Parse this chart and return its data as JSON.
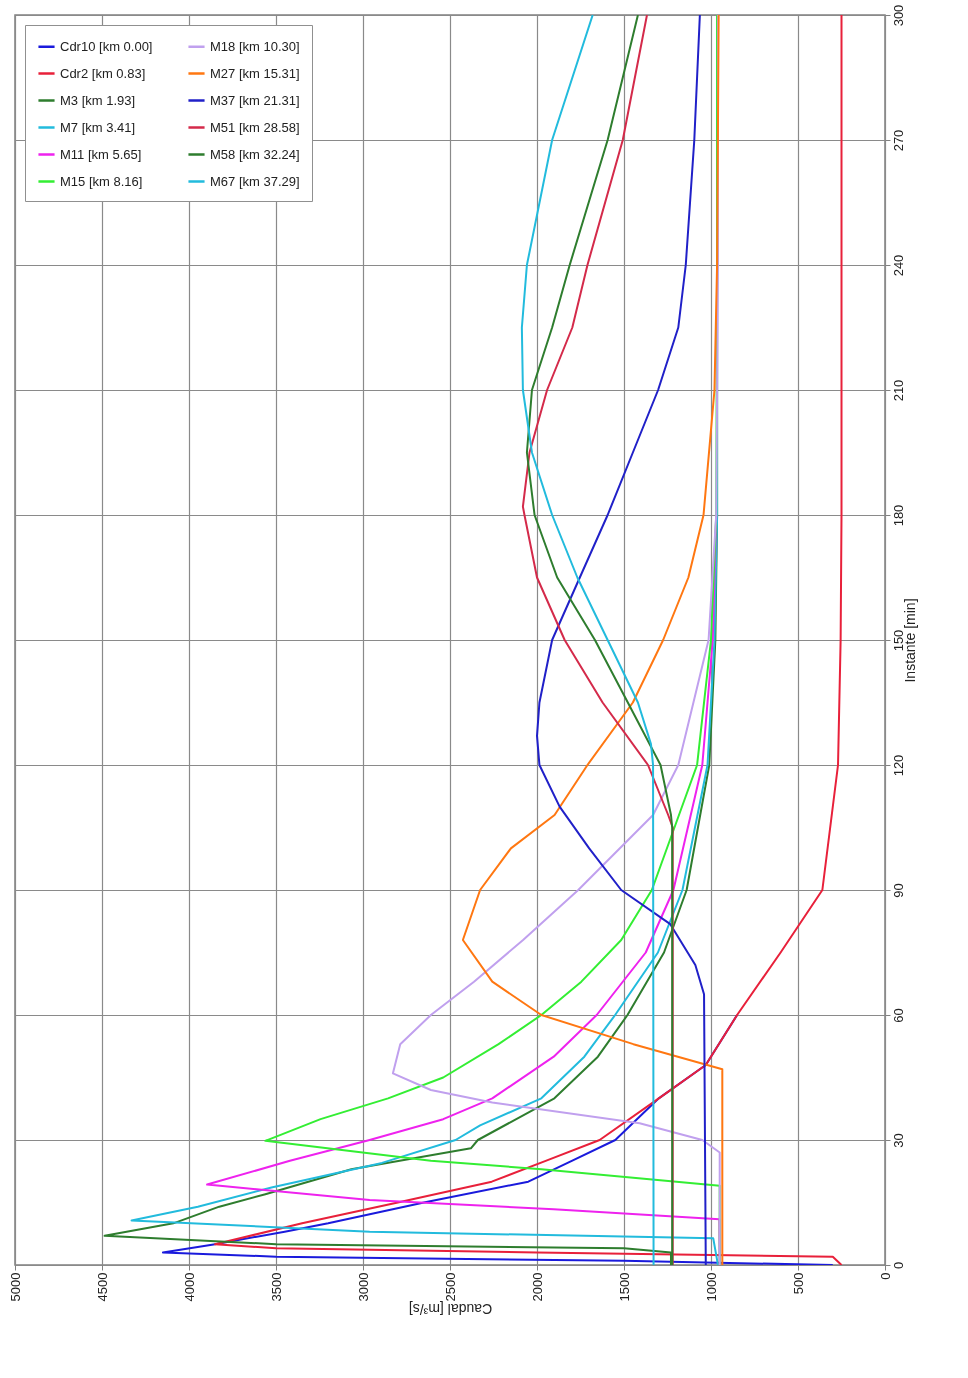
{
  "chart_data": {
    "type": "line",
    "xlabel": "Caudal [m³/s]",
    "ylabel": "Instante [min]",
    "xlim": [
      5000,
      0
    ],
    "ylim": [
      0,
      300
    ],
    "xticks": [
      5000,
      4500,
      4000,
      3500,
      3000,
      2500,
      2000,
      1500,
      1000,
      500,
      0
    ],
    "yticks": [
      0,
      30,
      60,
      90,
      120,
      150,
      180,
      210,
      240,
      270,
      300
    ],
    "grid": true,
    "legend": "top left",
    "series": [
      {
        "name": "Cdr10 [km 0.00]",
        "color": "#1a1adc",
        "x": [
          300,
          1500,
          3500,
          4150,
          3850,
          3450,
          3200,
          2650,
          2050,
          1800,
          1550,
          1300,
          1030,
          850
        ],
        "values": [
          0,
          1,
          2,
          3,
          5,
          8,
          10,
          15,
          20,
          25,
          30,
          40,
          48,
          60
        ]
      },
      {
        "name": "Cdr2 [km 0.83]",
        "color": "#e8203a",
        "x": [
          250,
          300,
          2000,
          3500,
          3850,
          3350,
          2800,
          2260,
          1950,
          1640,
          1300,
          1030,
          850,
          600,
          360,
          270,
          255,
          250,
          250,
          250
        ],
        "values": [
          0,
          2,
          3,
          4,
          5,
          10,
          15,
          20,
          25,
          30,
          40,
          48,
          60,
          75,
          90,
          120,
          150,
          180,
          240,
          300
        ]
      },
      {
        "name": "M3 [km 1.93]",
        "color": "#2e7d2e",
        "x": [
          1230,
          1230,
          1500,
          3500,
          4485,
          4090,
          3826,
          3561,
          3067,
          2380,
          2340,
          1900,
          1650,
          1480,
          1270,
          1140,
          1010,
          975,
          965,
          965,
          965
        ],
        "values": [
          0,
          3,
          4,
          5,
          7,
          10,
          14,
          17,
          23,
          28,
          30,
          40,
          50,
          60,
          75,
          90,
          120,
          150,
          180,
          240,
          300
        ]
      },
      {
        "name": "M7 [km 3.41]",
        "color": "#22bbdd",
        "x": [
          960,
          987,
          2962,
          4330,
          3949,
          3526,
          2891,
          2468,
          2327,
          1975,
          1728,
          1551,
          1305,
          1164,
          1020,
          980,
          965,
          965,
          965
        ],
        "values": [
          0,
          6.4,
          8,
          10.7,
          14,
          18.6,
          24.5,
          30,
          33.5,
          40,
          50,
          60,
          75,
          90,
          120,
          150,
          180,
          240,
          300
        ]
      },
      {
        "name": "M11 [km 5.65]",
        "color": "#ee22ee",
        "x": [
          950,
          952,
          1904,
          2962,
          3896,
          3420,
          2962,
          2539,
          2257,
          1904,
          1657,
          1375,
          1216,
          1050,
          990,
          970
        ],
        "values": [
          0,
          11,
          13.4,
          15.6,
          19.3,
          25,
          30,
          35,
          40,
          50,
          60,
          75,
          90,
          120,
          150,
          180
        ]
      },
      {
        "name": "M15 [km 8.16]",
        "color": "#33ee33",
        "x": [
          950,
          950,
          1975,
          2610,
          3561,
          3244,
          2856,
          2539,
          2221,
          1975,
          1745,
          1516,
          1340,
          1080,
          1000,
          970,
          965,
          965
        ],
        "values": [
          0,
          19,
          23,
          25,
          29.8,
          35,
          40,
          45,
          53,
          60,
          68,
          78,
          90,
          120,
          150,
          180,
          240,
          300
        ]
      },
      {
        "name": "M18 [km 10.30]",
        "color": "#c0a0ee",
        "x": [
          950,
          950,
          1050,
          1410,
          2257,
          2610,
          2828,
          2786,
          2610,
          2362,
          2080,
          1763,
          1333,
          1188,
          1014,
          970,
          960,
          960
        ],
        "values": [
          0,
          27,
          30,
          34,
          39,
          42,
          46,
          53,
          60,
          68,
          78,
          90,
          108,
          120,
          150,
          180,
          240,
          300
        ]
      },
      {
        "name": "M27 [km 15.31]",
        "color": "#ff7711",
        "x": [
          935,
          935,
          1446,
          1975,
          2257,
          2426,
          2327,
          2150,
          1899,
          1710,
          1449,
          1275,
          1130,
          1043,
          980,
          965,
          956
        ],
        "values": [
          0,
          47,
          53,
          60,
          68,
          78,
          90,
          100,
          108,
          120,
          135,
          150,
          165,
          180,
          210,
          240,
          300
        ]
      },
      {
        "name": "M37 [km 21.31]",
        "color": "#2020c8",
        "x": [
          1030,
          1040,
          1090,
          1234,
          1516,
          1700,
          1870,
          1986,
          2000,
          1986,
          1913,
          1754,
          1594,
          1449,
          1304,
          1188,
          1145,
          1096,
          1064
        ],
        "values": [
          0,
          65,
          72,
          81.8,
          90,
          100,
          110,
          120,
          127,
          135,
          150,
          165,
          180,
          195,
          210,
          225,
          240,
          270,
          300
        ]
      },
      {
        "name": "M51 [km 28.58]",
        "color": "#d42a4a",
        "x": [
          1220,
          1220,
          1246,
          1362,
          1623,
          1841,
          2000,
          2072,
          2081,
          2043,
          1942,
          1797,
          1710,
          1507,
          1368
        ],
        "values": [
          0,
          105,
          108,
          120,
          135,
          150,
          165,
          180,
          182,
          195,
          210,
          225,
          240,
          270,
          300
        ]
      },
      {
        "name": "M58 [km 32.24]",
        "color": "#2e7d2e",
        "x": [
          1223,
          1223,
          1230,
          1290,
          1478,
          1667,
          1884,
          2014,
          2058,
          2029,
          1913,
          1812,
          1594,
          1420
        ],
        "values": [
          0,
          105,
          108,
          120,
          135,
          150,
          165,
          180,
          195,
          210,
          225,
          240,
          270,
          300
        ]
      },
      {
        "name": "M67 [km 37.29]",
        "color": "#22bbdd",
        "x": [
          1330,
          1333,
          1345,
          1420,
          1594,
          1768,
          1913,
          2029,
          2081,
          2087,
          2058,
          1913,
          1680
        ],
        "values": [
          0,
          120,
          125,
          135,
          150,
          165,
          180,
          195,
          210,
          225,
          240,
          270,
          300
        ]
      }
    ]
  }
}
